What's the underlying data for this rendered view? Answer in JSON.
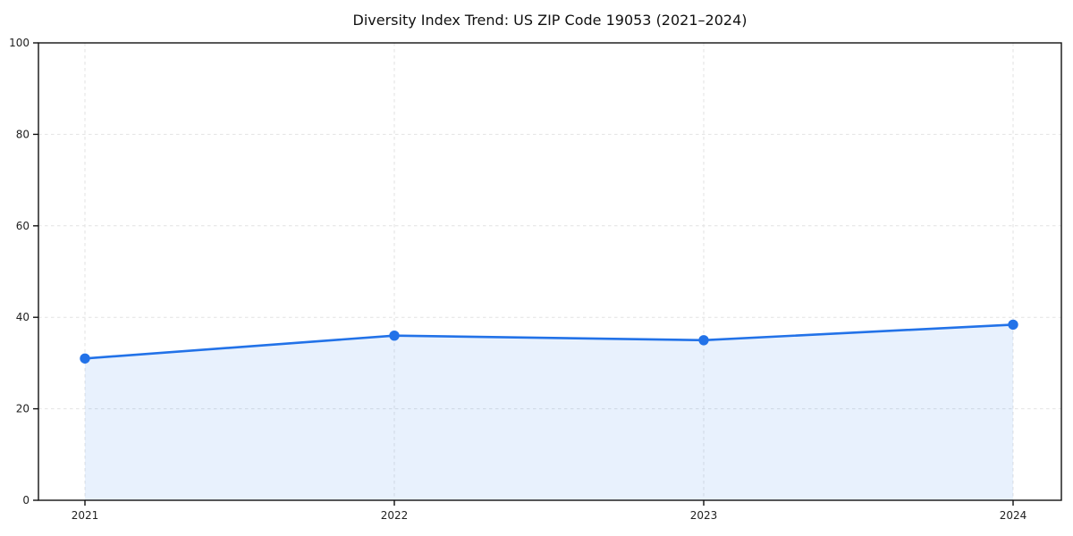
{
  "chart_data": {
    "type": "area",
    "title": "Diversity Index Trend: US ZIP Code 19053 (2021–2024)",
    "categories": [
      "2021",
      "2022",
      "2023",
      "2024"
    ],
    "x": [
      2021,
      2022,
      2023,
      2024
    ],
    "series": [
      {
        "name": "Diversity Index",
        "values": [
          31,
          36,
          35,
          38.4
        ]
      }
    ],
    "xlabel": "",
    "ylabel": "",
    "ylim": [
      0,
      100
    ],
    "yticks": [
      0,
      20,
      40,
      60,
      80,
      100
    ],
    "grid": true,
    "grid_style": "dashed",
    "legend": "none",
    "colors": {
      "line": "#2272e8",
      "marker": "#2272e8",
      "fill": "rgba(34,114,232,0.10)",
      "grid": "#e2e2e2",
      "spine": "#111111",
      "tick_text": "#222222",
      "background": "#ffffff"
    }
  }
}
